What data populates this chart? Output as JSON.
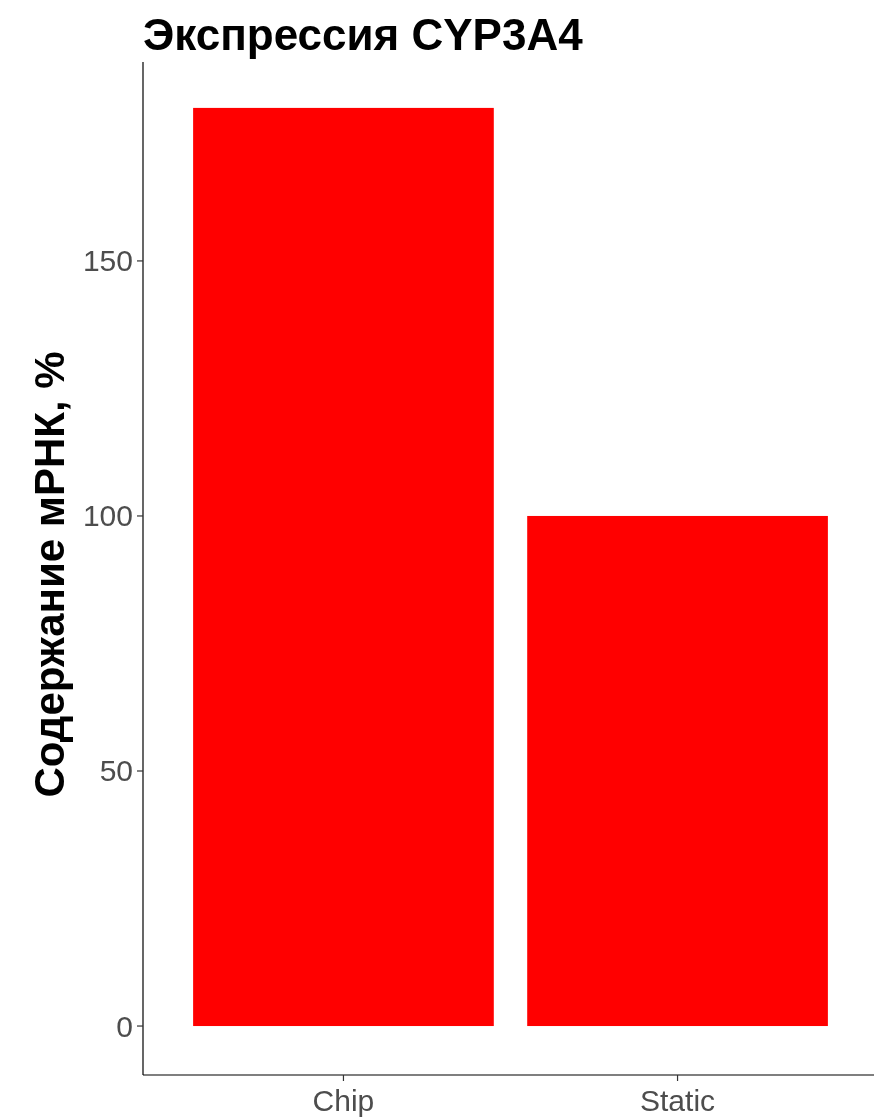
{
  "chart_data": {
    "type": "bar",
    "title": "Экспрессия CYP3A4",
    "ylabel": "Содержание мРНК, %",
    "categories": [
      "Chip",
      "Static"
    ],
    "values": [
      180,
      100
    ],
    "color": "#ff0000",
    "ylim": [
      -9.6,
      189
    ],
    "yticks": [
      0,
      50,
      100,
      150
    ],
    "grid": false
  }
}
